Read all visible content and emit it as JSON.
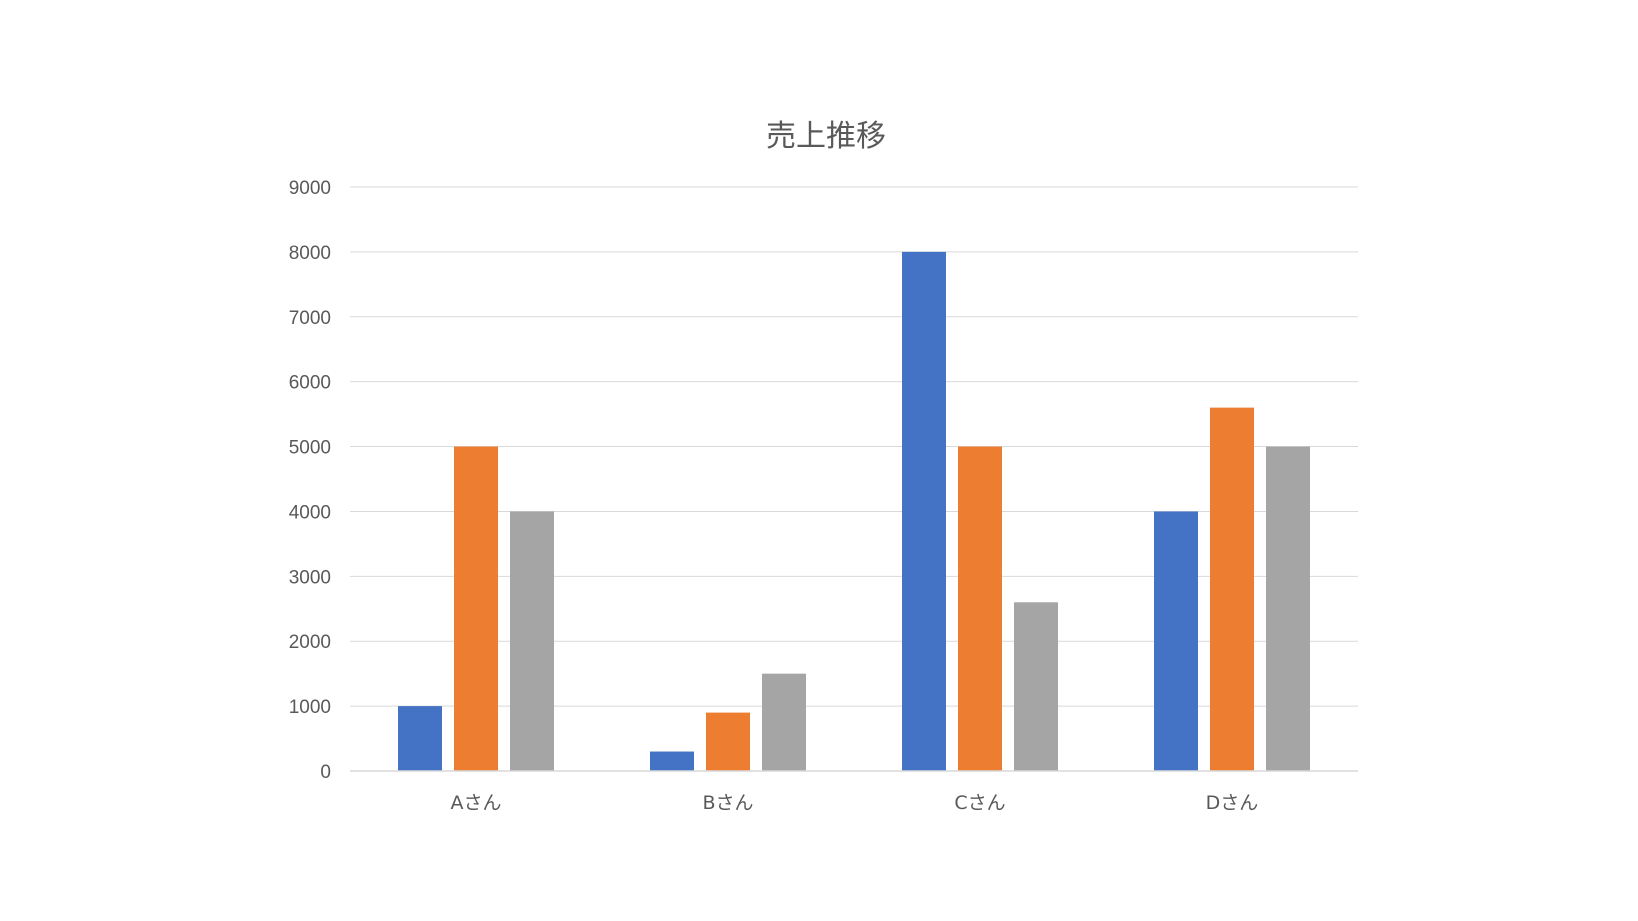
{
  "chart_data": {
    "type": "bar",
    "title": "売上推移",
    "xlabel": "",
    "ylabel": "",
    "categories": [
      "Aさん",
      "Bさん",
      "Cさん",
      "Dさん"
    ],
    "series": [
      {
        "values": [
          1000,
          300,
          8000,
          4000
        ],
        "color": "#4472C4"
      },
      {
        "values": [
          5000,
          900,
          5000,
          5600
        ],
        "color": "#ED7D31"
      },
      {
        "values": [
          4000,
          1500,
          2600,
          5000
        ],
        "color": "#A5A5A5"
      }
    ],
    "ylim": [
      0,
      9000
    ],
    "yticks": [
      "0",
      "1000",
      "2000",
      "3000",
      "4000",
      "5000",
      "6000",
      "7000",
      "8000",
      "9000"
    ],
    "grid": true,
    "legend": "none"
  }
}
